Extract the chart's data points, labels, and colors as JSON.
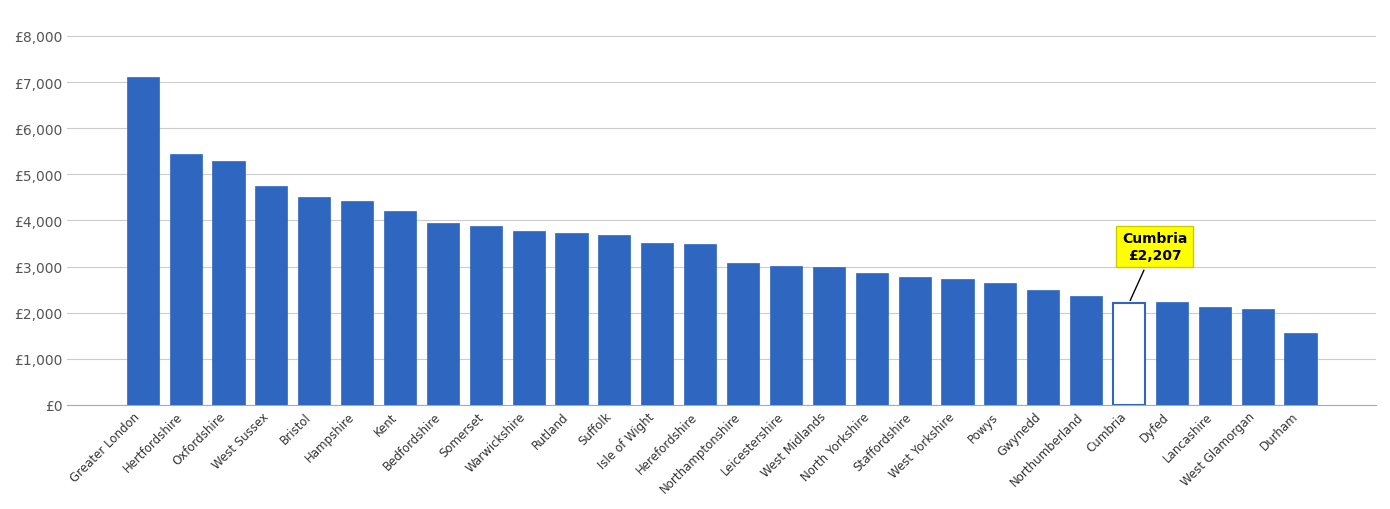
{
  "categories": [
    "Greater London",
    "Hertfordshire",
    "Oxfordshire",
    "West Sussex",
    "Bristol",
    "Hampshire",
    "Kent",
    "Bedfordshire",
    "Somerset",
    "Warwickshire",
    "Rutland",
    "Suffolk",
    "Isle of Wight",
    "Herefordshire",
    "Northamptonshire",
    "Leicestershire",
    "West Midlands",
    "North Yorkshire",
    "Staffordshire",
    "West Yorkshire",
    "Powys",
    "Gwynedd",
    "Northumberland",
    "Cumbria",
    "Dyfed",
    "Lancashire",
    "West Glamorgan",
    "Durham"
  ],
  "values": [
    7100,
    5450,
    5280,
    4750,
    4500,
    4430,
    4200,
    3950,
    3870,
    3760,
    3720,
    3680,
    3500,
    3480,
    3080,
    3020,
    2980,
    2870,
    2780,
    2720,
    2650,
    2500,
    2370,
    2207,
    2230,
    2130,
    2070,
    1560
  ],
  "highlight_label": "Cumbria\n£2,207",
  "bar_color": "#2f67c0",
  "highlight_bar_color": "#ffffff",
  "highlight_border_color": "#2f67c0",
  "annotation_bg_color": "#ffff00",
  "annotation_text_color": "#000000",
  "ylim": [
    0,
    8500
  ],
  "yticks": [
    0,
    1000,
    2000,
    3000,
    4000,
    5000,
    6000,
    7000,
    8000
  ],
  "ytick_labels": [
    "£0",
    "£1,000",
    "£2,000",
    "£3,000",
    "£4,000",
    "£5,000",
    "£6,000",
    "£7,000",
    "£8,000"
  ],
  "background_color": "#ffffff",
  "grid_color": "#cccccc",
  "figsize": [
    13.9,
    5.1
  ],
  "dpi": 100
}
